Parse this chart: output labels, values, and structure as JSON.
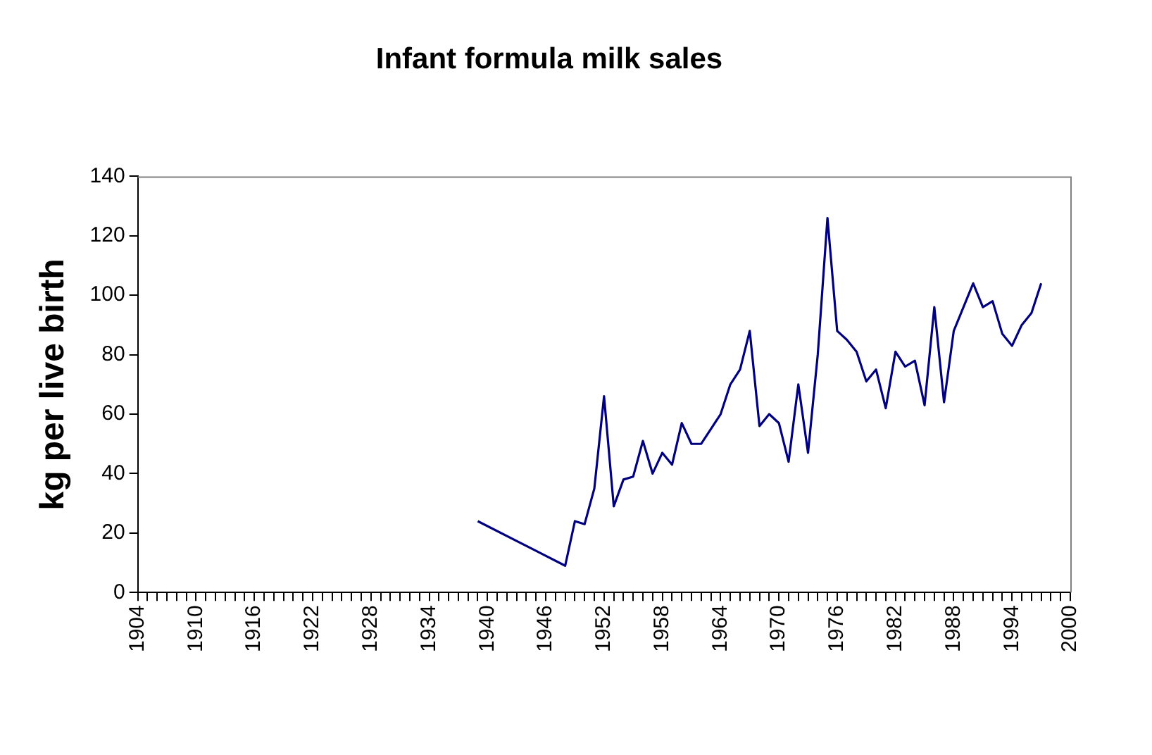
{
  "chart_data": {
    "type": "line",
    "title": "Infant formula milk sales",
    "ylabel": "kg per live birth",
    "x": [
      1939,
      1948,
      1949,
      1950,
      1951,
      1952,
      1953,
      1954,
      1955,
      1956,
      1957,
      1958,
      1959,
      1960,
      1961,
      1962,
      1963,
      1964,
      1965,
      1966,
      1967,
      1968,
      1969,
      1970,
      1971,
      1972,
      1973,
      1974,
      1975,
      1976,
      1977,
      1978,
      1979,
      1980,
      1981,
      1982,
      1983,
      1984,
      1985,
      1986,
      1987,
      1988,
      1989,
      1990,
      1991,
      1992,
      1993,
      1994,
      1995,
      1996,
      1997
    ],
    "series": [
      {
        "color": "#000080",
        "values": [
          24,
          9,
          24,
          23,
          35,
          66,
          29,
          38,
          39,
          51,
          40,
          47,
          43,
          57,
          50,
          50,
          55,
          60,
          70,
          75,
          88,
          56,
          60,
          57,
          44,
          70,
          47,
          80,
          126,
          88,
          85,
          81,
          71,
          75,
          62,
          81,
          76,
          78,
          63,
          96,
          64,
          88,
          96,
          104,
          96,
          98,
          87,
          83,
          90,
          94,
          104
        ]
      }
    ],
    "xlim": [
      1904,
      2000
    ],
    "xticks": [
      1904,
      {
        "value": 1905,
        "label": null
      },
      {
        "value": 1906,
        "label": null
      },
      {
        "value": 1907,
        "label": null
      },
      {
        "value": 1908,
        "label": null
      },
      {
        "value": 1909,
        "label": null
      },
      1910,
      {
        "value": 1911,
        "label": null
      },
      {
        "value": 1912,
        "label": null
      },
      {
        "value": 1913,
        "label": null
      },
      {
        "value": 1914,
        "label": null
      },
      {
        "value": 1915,
        "label": null
      },
      1916,
      {
        "value": 1917,
        "label": null
      },
      {
        "value": 1918,
        "label": null
      },
      {
        "value": 1919,
        "label": null
      },
      {
        "value": 1920,
        "label": null
      },
      {
        "value": 1921,
        "label": null
      },
      1922,
      {
        "value": 1923,
        "label": null
      },
      {
        "value": 1924,
        "label": null
      },
      {
        "value": 1925,
        "label": null
      },
      {
        "value": 1926,
        "label": null
      },
      {
        "value": 1927,
        "label": null
      },
      1928,
      {
        "value": 1929,
        "label": null
      },
      {
        "value": 1930,
        "label": null
      },
      {
        "value": 1931,
        "label": null
      },
      {
        "value": 1932,
        "label": null
      },
      {
        "value": 1933,
        "label": null
      },
      1934,
      {
        "value": 1935,
        "label": null
      },
      {
        "value": 1936,
        "label": null
      },
      {
        "value": 1937,
        "label": null
      },
      {
        "value": 1938,
        "label": null
      },
      {
        "value": 1939,
        "label": null
      },
      1940,
      {
        "value": 1941,
        "label": null
      },
      {
        "value": 1942,
        "label": null
      },
      {
        "value": 1943,
        "label": null
      },
      {
        "value": 1944,
        "label": null
      },
      {
        "value": 1945,
        "label": null
      },
      1946,
      {
        "value": 1947,
        "label": null
      },
      {
        "value": 1948,
        "label": null
      },
      {
        "value": 1949,
        "label": null
      },
      {
        "value": 1950,
        "label": null
      },
      {
        "value": 1951,
        "label": null
      },
      1952,
      {
        "value": 1953,
        "label": null
      },
      {
        "value": 1954,
        "label": null
      },
      {
        "value": 1955,
        "label": null
      },
      {
        "value": 1956,
        "label": null
      },
      {
        "value": 1957,
        "label": null
      },
      1958,
      {
        "value": 1959,
        "label": null
      },
      {
        "value": 1960,
        "label": null
      },
      {
        "value": 1961,
        "label": null
      },
      {
        "value": 1962,
        "label": null
      },
      {
        "value": 1963,
        "label": null
      },
      1964,
      {
        "value": 1965,
        "label": null
      },
      {
        "value": 1966,
        "label": null
      },
      {
        "value": 1967,
        "label": null
      },
      {
        "value": 1968,
        "label": null
      },
      {
        "value": 1969,
        "label": null
      },
      1970,
      {
        "value": 1971,
        "label": null
      },
      {
        "value": 1972,
        "label": null
      },
      {
        "value": 1973,
        "label": null
      },
      {
        "value": 1974,
        "label": null
      },
      {
        "value": 1975,
        "label": null
      },
      1976,
      {
        "value": 1977,
        "label": null
      },
      {
        "value": 1978,
        "label": null
      },
      {
        "value": 1979,
        "label": null
      },
      {
        "value": 1980,
        "label": null
      },
      {
        "value": 1981,
        "label": null
      },
      1982,
      {
        "value": 1983,
        "label": null
      },
      {
        "value": 1984,
        "label": null
      },
      {
        "value": 1985,
        "label": null
      },
      {
        "value": 1986,
        "label": null
      },
      {
        "value": 1987,
        "label": null
      },
      1988,
      {
        "value": 1989,
        "label": null
      },
      {
        "value": 1990,
        "label": null
      },
      {
        "value": 1991,
        "label": null
      },
      {
        "value": 1992,
        "label": null
      },
      {
        "value": 1993,
        "label": null
      },
      1994,
      {
        "value": 1995,
        "label": null
      },
      {
        "value": 1996,
        "label": null
      },
      {
        "value": 1997,
        "label": null
      },
      {
        "value": 1998,
        "label": null
      },
      {
        "value": 1999,
        "label": null
      },
      2000
    ],
    "ylim": [
      0,
      140
    ],
    "yticks": [
      0,
      20,
      40,
      60,
      80,
      100,
      120,
      140
    ],
    "grid": false,
    "legend": false,
    "marker": "none",
    "line_style": "solid"
  }
}
